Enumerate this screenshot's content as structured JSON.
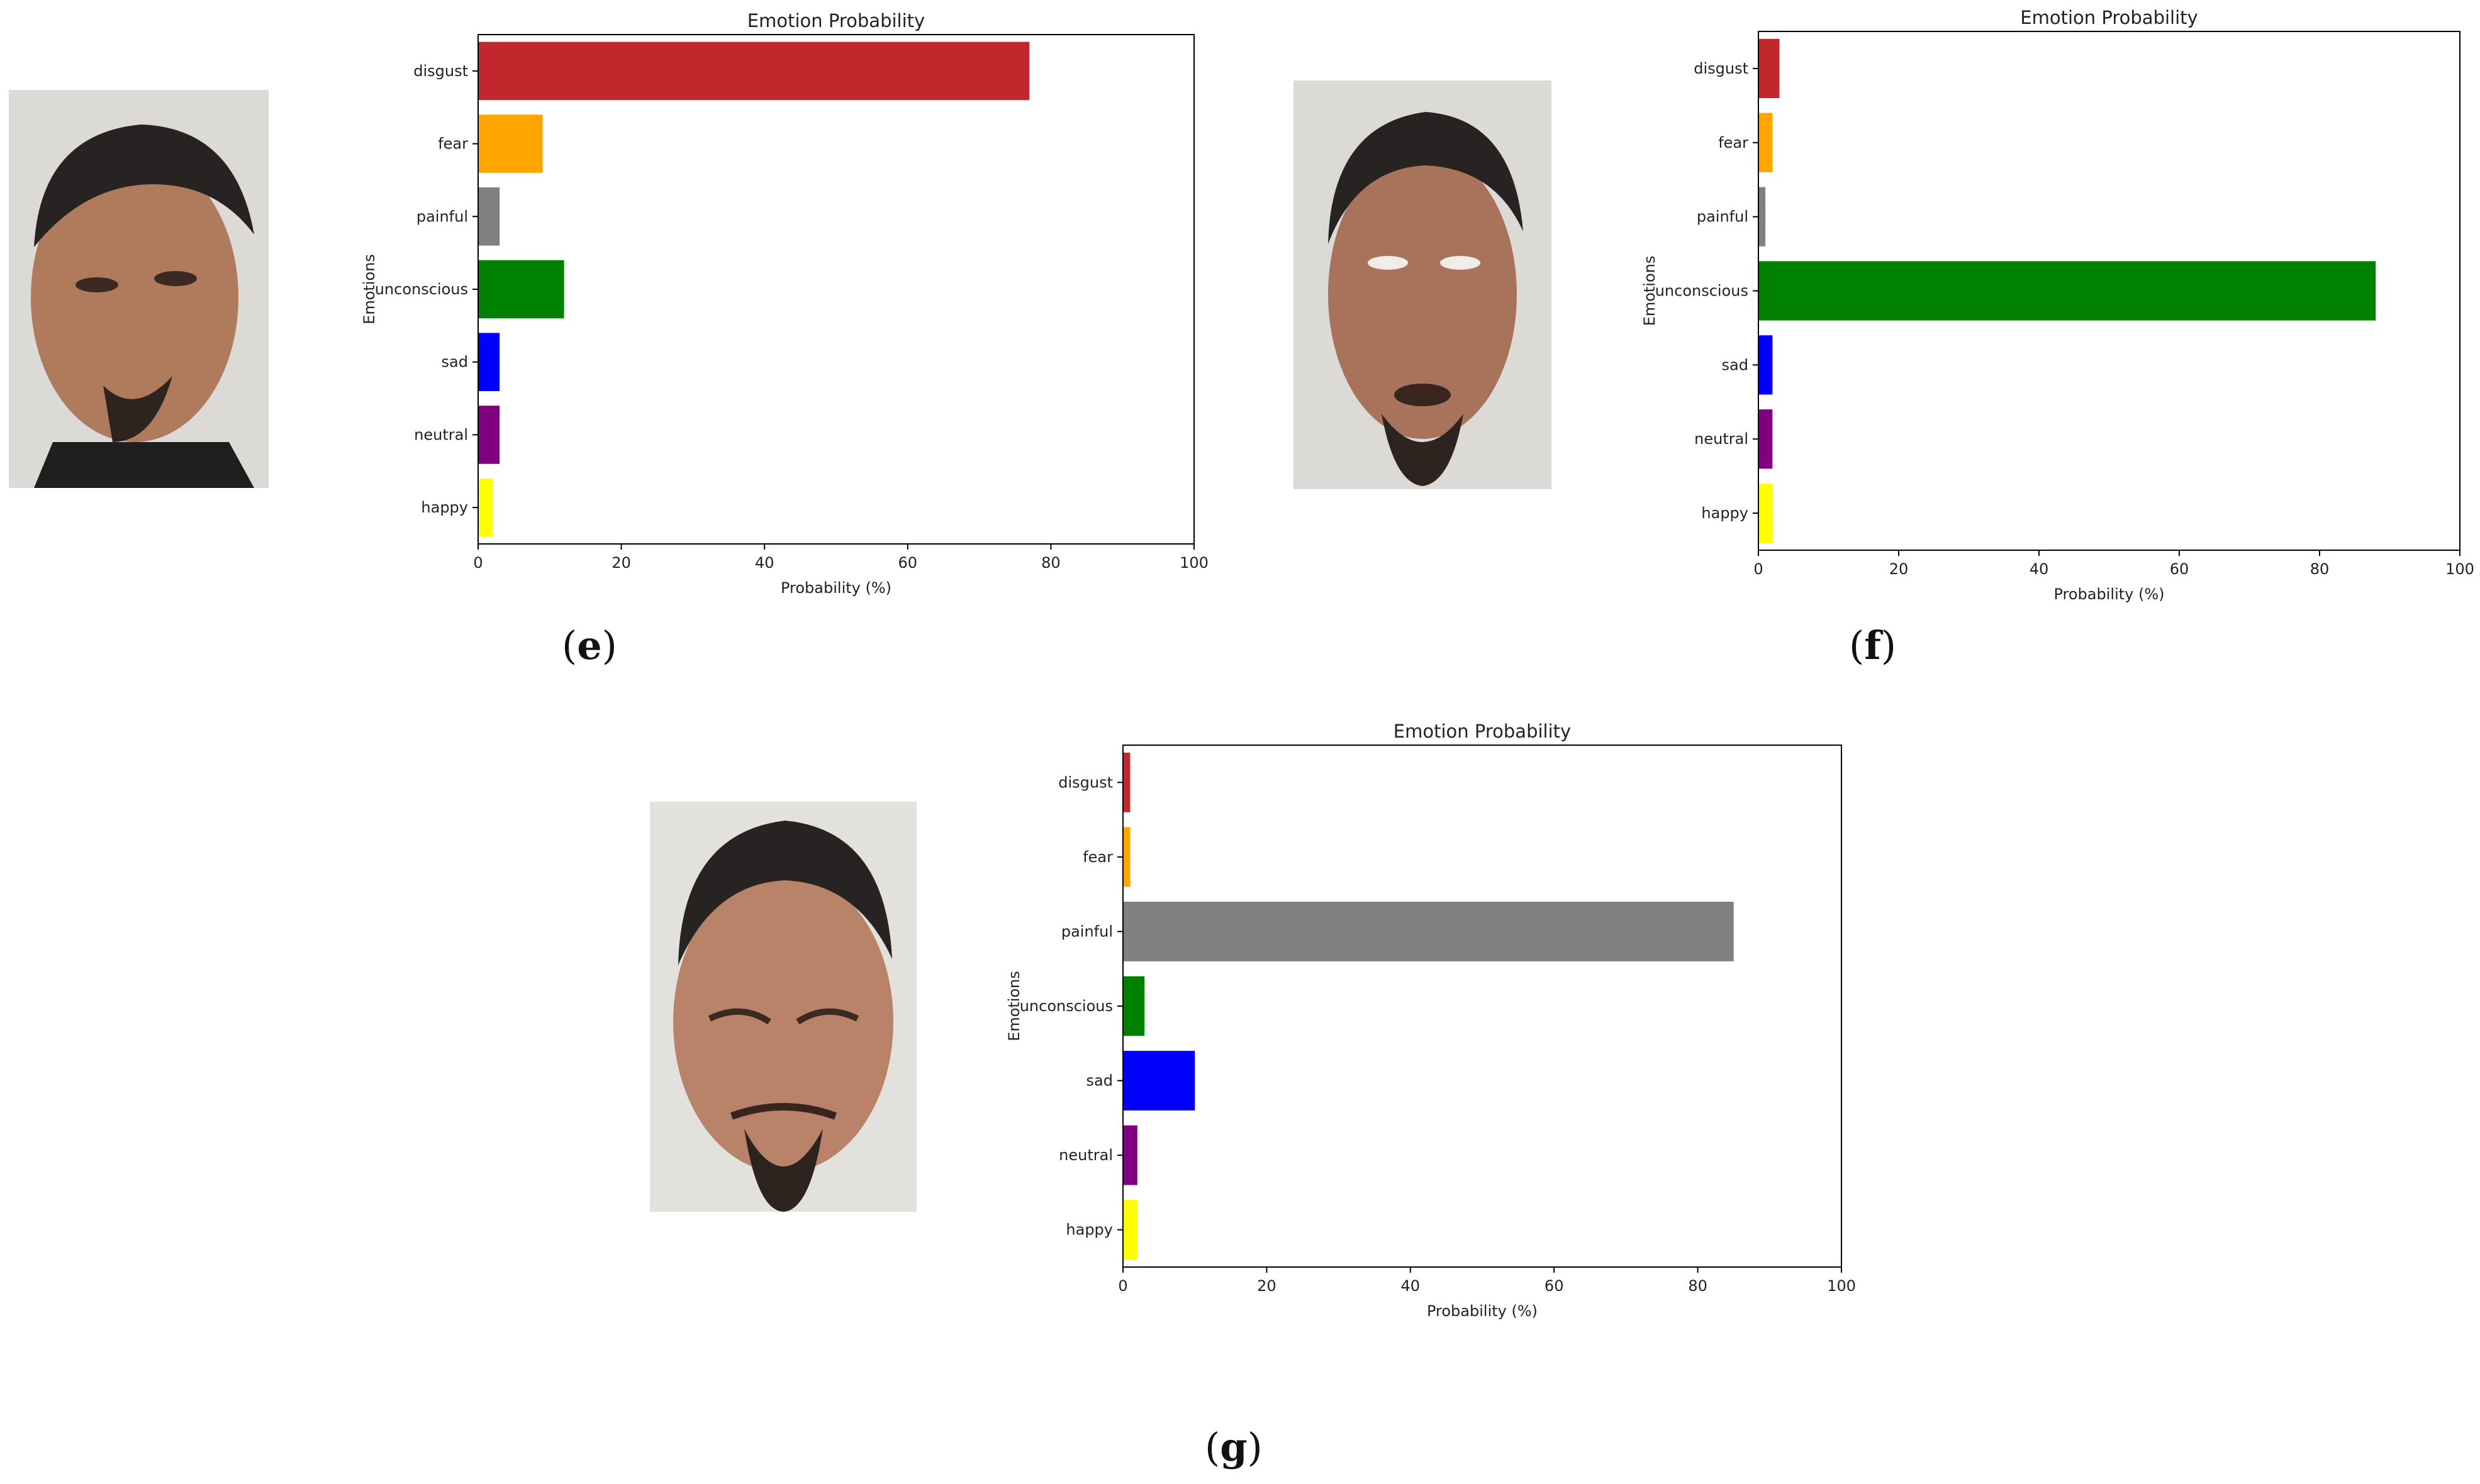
{
  "figure": {
    "panels": [
      {
        "label": "e",
        "photo": {
          "description_icon": "face-photo-disgust"
        },
        "chart_index": 0
      },
      {
        "label": "f",
        "photo": {
          "description_icon": "face-photo-eyes-rolled-up"
        },
        "chart_index": 1
      },
      {
        "label": "g",
        "photo": {
          "description_icon": "face-photo-squinting"
        },
        "chart_index": 2
      }
    ]
  },
  "colors": {
    "disgust": "#c1272d",
    "fear": "#ffa500",
    "painful": "#808080",
    "unconscious": "#008000",
    "sad": "#0000ff",
    "neutral": "#800080",
    "happy": "#ffff00"
  },
  "chart_data": [
    {
      "type": "bar",
      "orientation": "horizontal",
      "title": "Emotion Probability",
      "xlabel": "Probability (%)",
      "ylabel": "Emotions",
      "xlim": [
        0,
        100
      ],
      "xticks": [
        0,
        20,
        40,
        60,
        80,
        100
      ],
      "categories": [
        "disgust",
        "fear",
        "painful",
        "unconscious",
        "sad",
        "neutral",
        "happy"
      ],
      "values": [
        77,
        9,
        3,
        12,
        3,
        3,
        2
      ],
      "grid": false
    },
    {
      "type": "bar",
      "orientation": "horizontal",
      "title": "Emotion Probability",
      "xlabel": "Probability (%)",
      "ylabel": "Emotions",
      "xlim": [
        0,
        100
      ],
      "xticks": [
        0,
        20,
        40,
        60,
        80,
        100
      ],
      "categories": [
        "disgust",
        "fear",
        "painful",
        "unconscious",
        "sad",
        "neutral",
        "happy"
      ],
      "values": [
        3,
        2,
        1,
        88,
        2,
        2,
        2
      ],
      "grid": false
    },
    {
      "type": "bar",
      "orientation": "horizontal",
      "title": "Emotion Probability",
      "xlabel": "Probability (%)",
      "ylabel": "Emotions",
      "xlim": [
        0,
        100
      ],
      "xticks": [
        0,
        20,
        40,
        60,
        80,
        100
      ],
      "categories": [
        "disgust",
        "fear",
        "painful",
        "unconscious",
        "sad",
        "neutral",
        "happy"
      ],
      "values": [
        1,
        1,
        85,
        3,
        10,
        2,
        2
      ],
      "grid": false
    }
  ]
}
